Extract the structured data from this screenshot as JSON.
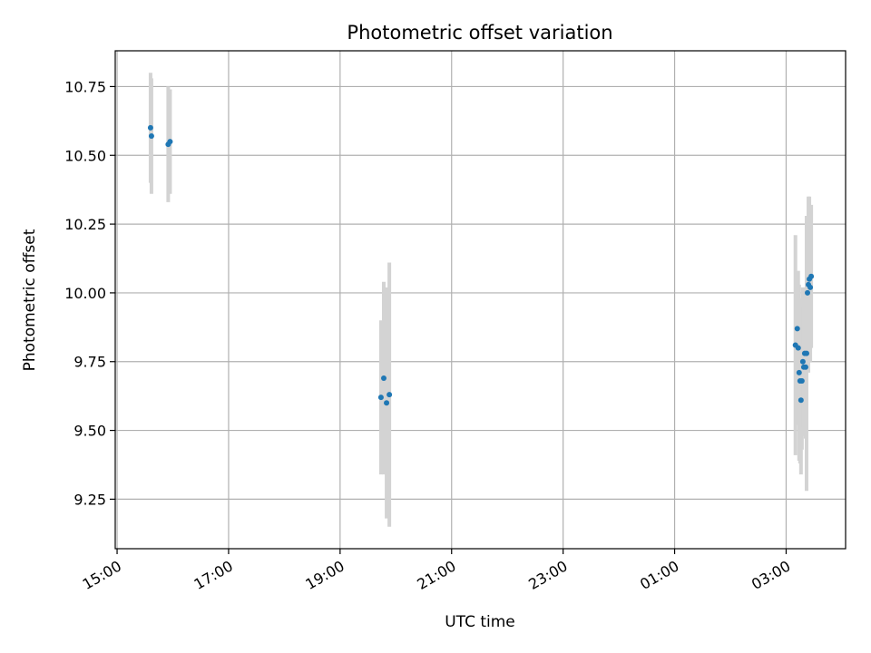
{
  "chart_data": {
    "type": "scatter",
    "title": "Photometric offset variation",
    "xlabel": "UTC time",
    "ylabel": "Photometric offset",
    "x_ticks": [
      "15:00",
      "17:00",
      "19:00",
      "21:00",
      "23:00",
      "01:00",
      "03:00"
    ],
    "y_ticks": [
      "9.25",
      "9.50",
      "9.75",
      "10.00",
      "10.25",
      "10.50",
      "10.75"
    ],
    "xlim": [
      "14:58",
      "04:04"
    ],
    "ylim": [
      9.07,
      10.88
    ],
    "grid": true,
    "colors": {
      "point": "#1f77b4",
      "errorbar": "#d3d3d3",
      "grid": "#b0b0b0"
    },
    "points": [
      {
        "x": "15:36",
        "y": 10.6,
        "err": 0.2
      },
      {
        "x": "15:37",
        "y": 10.57,
        "err": 0.21
      },
      {
        "x": "15:55",
        "y": 10.54,
        "err": 0.21
      },
      {
        "x": "15:57",
        "y": 10.55,
        "err": 0.19
      },
      {
        "x": "19:44",
        "y": 9.62,
        "err": 0.28
      },
      {
        "x": "19:47",
        "y": 9.69,
        "err": 0.35
      },
      {
        "x": "19:50",
        "y": 9.6,
        "err": 0.42
      },
      {
        "x": "19:53",
        "y": 9.63,
        "err": 0.48
      },
      {
        "x": "03:10",
        "y": 9.81,
        "err": 0.4
      },
      {
        "x": "03:12",
        "y": 9.87,
        "err": 0.2
      },
      {
        "x": "03:13",
        "y": 9.8,
        "err": 0.28
      },
      {
        "x": "03:14",
        "y": 9.71,
        "err": 0.32
      },
      {
        "x": "03:15",
        "y": 9.68,
        "err": 0.3
      },
      {
        "x": "03:16",
        "y": 9.61,
        "err": 0.27
      },
      {
        "x": "03:17",
        "y": 9.68,
        "err": 0.25
      },
      {
        "x": "03:18",
        "y": 9.75,
        "err": 0.27
      },
      {
        "x": "03:19",
        "y": 9.73,
        "err": 0.22
      },
      {
        "x": "03:20",
        "y": 9.78,
        "err": 0.24
      },
      {
        "x": "03:21",
        "y": 9.73,
        "err": 0.26
      },
      {
        "x": "03:22",
        "y": 9.78,
        "err": 0.5
      },
      {
        "x": "03:23",
        "y": 10.0,
        "err": 0.28
      },
      {
        "x": "03:24",
        "y": 10.03,
        "err": 0.32
      },
      {
        "x": "03:25",
        "y": 10.05,
        "err": 0.3
      },
      {
        "x": "03:26",
        "y": 10.02,
        "err": 0.27
      },
      {
        "x": "03:27",
        "y": 10.06,
        "err": 0.26
      }
    ]
  }
}
